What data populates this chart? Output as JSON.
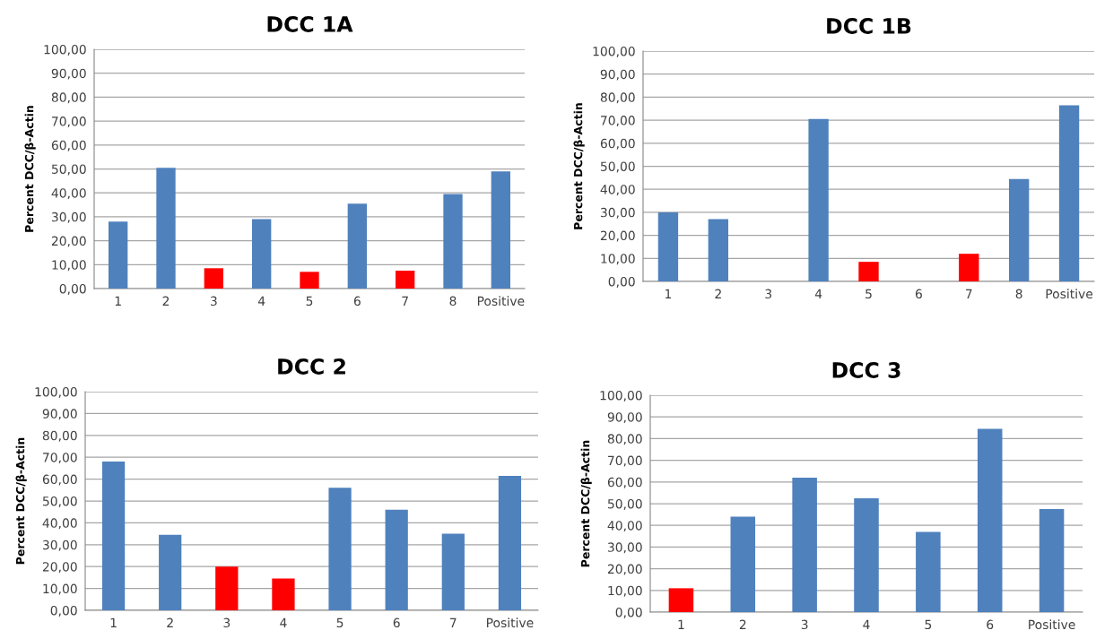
{
  "chart_data": [
    {
      "type": "bar",
      "title": "DCC 1A",
      "ylabel": "Percent DCC/β-Actin",
      "categories": [
        "1",
        "2",
        "3",
        "4",
        "5",
        "6",
        "7",
        "8",
        "Positive"
      ],
      "values": [
        28,
        50.5,
        8.5,
        29,
        7,
        35.5,
        7.5,
        39.5,
        49
      ],
      "colors": [
        "#4f81bd",
        "#4f81bd",
        "#ff0000",
        "#4f81bd",
        "#ff0000",
        "#4f81bd",
        "#ff0000",
        "#4f81bd",
        "#4f81bd"
      ],
      "ylim": [
        0,
        100
      ],
      "yticks": [
        {
          "value": 0,
          "label": "0,00"
        },
        {
          "value": 10,
          "label": "10,00"
        },
        {
          "value": 20,
          "label": "20,00"
        },
        {
          "value": 30,
          "label": "30,00"
        },
        {
          "value": 40,
          "label": "40,00"
        },
        {
          "value": 50,
          "label": "50,00"
        },
        {
          "value": 60,
          "label": "60,00"
        },
        {
          "value": 70,
          "label": "70,00"
        },
        {
          "value": 80,
          "label": "80,00"
        },
        {
          "value": 90,
          "label": "90,00"
        },
        {
          "value": 100,
          "label": "100,00"
        }
      ],
      "grid": "y"
    },
    {
      "type": "bar",
      "title": "DCC 1B",
      "ylabel": "Percent DCC/β-Actin",
      "categories": [
        "1",
        "2",
        "3",
        "4",
        "5",
        "6",
        "7",
        "8",
        "Positive"
      ],
      "values": [
        30,
        27,
        0,
        70.5,
        8.5,
        0,
        12,
        44.5,
        76.5
      ],
      "colors": [
        "#4f81bd",
        "#4f81bd",
        "#4f81bd",
        "#4f81bd",
        "#ff0000",
        "#4f81bd",
        "#ff0000",
        "#4f81bd",
        "#4f81bd"
      ],
      "ylim": [
        0,
        100
      ],
      "yticks": [
        {
          "value": 0,
          "label": "0,00"
        },
        {
          "value": 10,
          "label": "10,00"
        },
        {
          "value": 20,
          "label": "20,00"
        },
        {
          "value": 30,
          "label": "30,00"
        },
        {
          "value": 40,
          "label": "40,00"
        },
        {
          "value": 50,
          "label": "50,00"
        },
        {
          "value": 60,
          "label": "60,00"
        },
        {
          "value": 70,
          "label": "70,00"
        },
        {
          "value": 80,
          "label": "80,00"
        },
        {
          "value": 90,
          "label": "90,00"
        },
        {
          "value": 100,
          "label": "100,00"
        }
      ],
      "grid": "y"
    },
    {
      "type": "bar",
      "title": "DCC 2",
      "ylabel": "Percent DCC/β-Actin",
      "categories": [
        "1",
        "2",
        "3",
        "4",
        "5",
        "6",
        "7",
        "Positive"
      ],
      "values": [
        68,
        34.5,
        20,
        14.5,
        56,
        46,
        35,
        61.5
      ],
      "colors": [
        "#4f81bd",
        "#4f81bd",
        "#ff0000",
        "#ff0000",
        "#4f81bd",
        "#4f81bd",
        "#4f81bd",
        "#4f81bd"
      ],
      "ylim": [
        0,
        100
      ],
      "yticks": [
        {
          "value": 0,
          "label": "0,00"
        },
        {
          "value": 10,
          "label": "10,00"
        },
        {
          "value": 20,
          "label": "20,00"
        },
        {
          "value": 30,
          "label": "30,00"
        },
        {
          "value": 40,
          "label": "40,00"
        },
        {
          "value": 50,
          "label": "50,00"
        },
        {
          "value": 60,
          "label": "60,00"
        },
        {
          "value": 70,
          "label": "70,00"
        },
        {
          "value": 80,
          "label": "80,00"
        },
        {
          "value": 90,
          "label": "90,00"
        },
        {
          "value": 100,
          "label": "100,00"
        }
      ],
      "grid": "y"
    },
    {
      "type": "bar",
      "title": "DCC 3",
      "ylabel": "Percent DCC/β-Actin",
      "categories": [
        "1",
        "2",
        "3",
        "4",
        "5",
        "6",
        "Positive"
      ],
      "values": [
        11,
        44,
        62,
        52.5,
        37,
        84.5,
        47.5
      ],
      "colors": [
        "#ff0000",
        "#4f81bd",
        "#4f81bd",
        "#4f81bd",
        "#4f81bd",
        "#4f81bd",
        "#4f81bd"
      ],
      "ylim": [
        0,
        100
      ],
      "yticks": [
        {
          "value": 0,
          "label": "0,00"
        },
        {
          "value": 10,
          "label": "10,00"
        },
        {
          "value": 20,
          "label": "20,00"
        },
        {
          "value": 30,
          "label": "30,00"
        },
        {
          "value": 40,
          "label": "40,00"
        },
        {
          "value": 50,
          "label": "50,00"
        },
        {
          "value": 60,
          "label": "60,00"
        },
        {
          "value": 70,
          "label": "70,00"
        },
        {
          "value": 80,
          "label": "80,00"
        },
        {
          "value": 90,
          "label": "90,00"
        },
        {
          "value": 100,
          "label": "100,00"
        }
      ],
      "grid": "y"
    }
  ]
}
